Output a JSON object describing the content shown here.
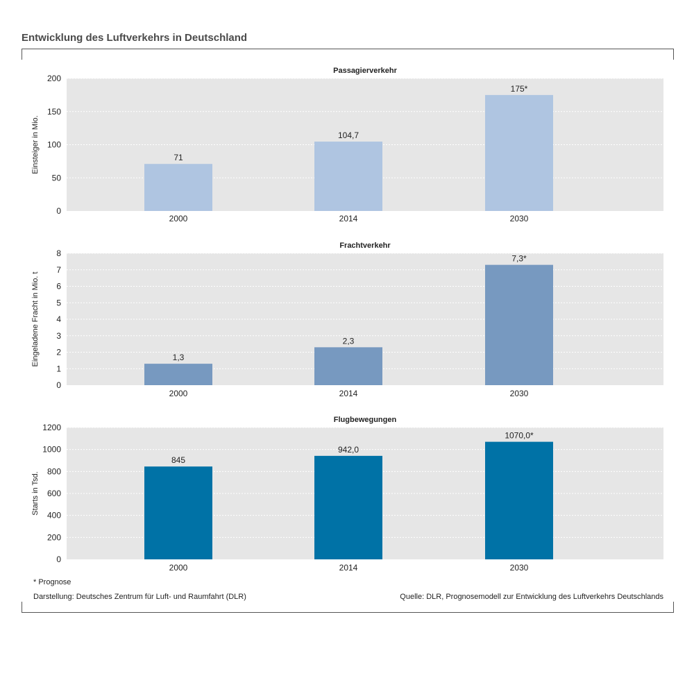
{
  "page": {
    "title": "Entwicklung des Luftverkehrs in Deutschland",
    "footnote": "* Prognose",
    "credit": "Darstellung: Deutsches Zentrum für Luft- und Raumfahrt (DLR)",
    "source": "Quelle: DLR, Prognosemodell zur Entwicklung des Luftverkehrs Deutschlands"
  },
  "chart_data": [
    {
      "type": "bar",
      "title": "Passagierverkehr",
      "ylabel": "Einsteiger in Mio.",
      "xlabel": "",
      "categories": [
        "2000",
        "2014",
        "2030"
      ],
      "values": [
        71,
        104.7,
        175
      ],
      "value_labels": [
        "71",
        "104,7",
        "175*"
      ],
      "ylim": [
        0,
        200
      ],
      "yticks": [
        0,
        50,
        100,
        150,
        200
      ],
      "ytick_labels": [
        "0",
        "50",
        "100",
        "150",
        "200"
      ],
      "grid": true,
      "color": "#afc5e1"
    },
    {
      "type": "bar",
      "title": "Frachtverkehr",
      "ylabel": "Eingeladene Fracht in Mio. t",
      "xlabel": "",
      "categories": [
        "2000",
        "2014",
        "2030"
      ],
      "values": [
        1.3,
        2.3,
        7.3
      ],
      "value_labels": [
        "1,3",
        "2,3",
        "7,3*"
      ],
      "ylim": [
        0,
        8
      ],
      "yticks": [
        0,
        1,
        2,
        3,
        4,
        5,
        6,
        7,
        8
      ],
      "ytick_labels": [
        "0",
        "1",
        "2",
        "3",
        "4",
        "5",
        "6",
        "7",
        "8"
      ],
      "grid": true,
      "color": "#7799c0"
    },
    {
      "type": "bar",
      "title": "Flugbewegungen",
      "ylabel": "Starts in Tsd.",
      "xlabel": "",
      "categories": [
        "2000",
        "2014",
        "2030"
      ],
      "values": [
        845,
        942.0,
        1070.0
      ],
      "value_labels": [
        "845",
        "942,0",
        "1070,0*"
      ],
      "ylim": [
        0,
        1200
      ],
      "yticks": [
        0,
        200,
        400,
        600,
        800,
        1000,
        1200
      ],
      "ytick_labels": [
        "0",
        "200",
        "400",
        "600",
        "800",
        "1000",
        "1200"
      ],
      "grid": true,
      "color": "#0072a6"
    }
  ]
}
